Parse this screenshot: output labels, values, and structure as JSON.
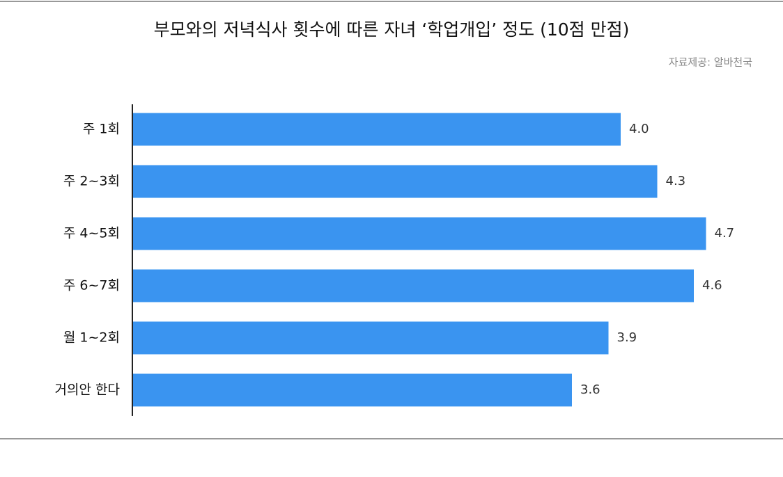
{
  "chart_data": {
    "type": "bar",
    "orientation": "horizontal",
    "title": "부모와의 저녁식사 횟수에 따른 자녀 ‘학업개입’ 정도 (10점 만점)",
    "source": "자료제공: 알바천국",
    "categories": [
      "주 1회",
      "주 2~3회",
      "주 4~5회",
      "주 6~7회",
      "월 1~2회",
      "거의안 한다"
    ],
    "values": [
      4.0,
      4.3,
      4.7,
      4.6,
      3.9,
      3.6
    ],
    "value_labels": [
      "4.0",
      "4.3",
      "4.7",
      "4.6",
      "3.9",
      "3.6"
    ],
    "color": "#3a94f0",
    "xlim": [
      0,
      5
    ]
  }
}
